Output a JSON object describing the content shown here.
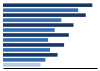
{
  "chart_data": {
    "type": "bar",
    "orientation": "horizontal",
    "categories": [
      null,
      null,
      null,
      null,
      null,
      null,
      null,
      null,
      null,
      null,
      null,
      null,
      null
    ],
    "values": [
      95,
      80,
      88,
      62,
      75,
      55,
      70,
      48,
      65,
      50,
      58,
      45,
      40
    ],
    "colors": [
      "#1a3563",
      "#2e6db4",
      "#1a3563",
      "#2e6db4",
      "#1a3563",
      "#2e6db4",
      "#1a3563",
      "#2e6db4",
      "#1a3563",
      "#2e6db4",
      "#1a3563",
      "#2e6db4",
      "#b8c9e0"
    ],
    "xlim": [
      0,
      100
    ],
    "tick_labels": false
  }
}
